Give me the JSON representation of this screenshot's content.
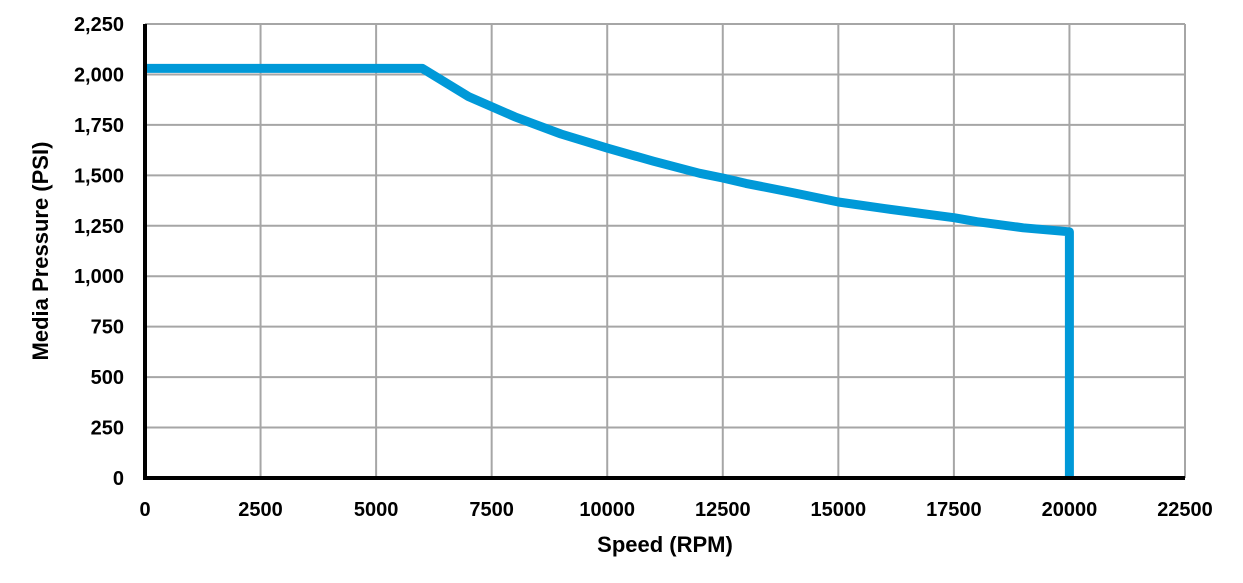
{
  "chart_data": {
    "type": "line",
    "title": "",
    "xlabel": "Speed (RPM)",
    "ylabel": "Media Pressure (PSI)",
    "xlim": [
      0,
      22500
    ],
    "ylim": [
      0,
      2250
    ],
    "x_ticks": [
      "0",
      "2500",
      "5000",
      "7500",
      "10000",
      "12500",
      "15000",
      "17500",
      "20000",
      "22500"
    ],
    "y_ticks": [
      "0",
      "250",
      "500",
      "750",
      "1,000",
      "1,250",
      "1,500",
      "1,750",
      "2,000",
      "2,250"
    ],
    "grid": true,
    "legend": null,
    "series": [
      {
        "name": "Media Pressure",
        "color": "#0099D8",
        "x": [
          0,
          6000,
          7000,
          8000,
          9000,
          10000,
          11000,
          12000,
          12500,
          13000,
          14000,
          15000,
          16000,
          17000,
          17500,
          18000,
          19000,
          20000,
          20000
        ],
        "y": [
          2030,
          2030,
          1890,
          1790,
          1705,
          1635,
          1570,
          1510,
          1487,
          1460,
          1415,
          1368,
          1335,
          1305,
          1290,
          1270,
          1240,
          1220,
          0
        ]
      }
    ]
  },
  "colors": {
    "line": "#0099D8",
    "grid": "#A6A6A6",
    "axis": "#000000"
  }
}
